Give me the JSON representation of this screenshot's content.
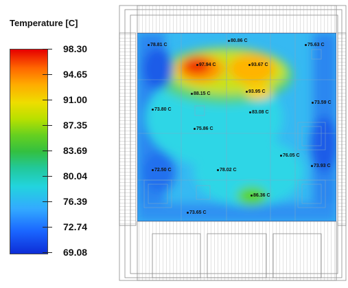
{
  "legend": {
    "title": "Temperature [C]",
    "values": [
      "98.30",
      "94.65",
      "91.00",
      "87.35",
      "83.69",
      "80.04",
      "76.39",
      "72.74",
      "69.08"
    ]
  },
  "color_scale": {
    "min": 69.08,
    "max": 98.3,
    "low_color": "#0d2dd6",
    "high_color": "#e60000"
  },
  "readings": [
    {
      "label": "78.81 C",
      "value": 78.81
    },
    {
      "label": "80.86 C",
      "value": 80.86
    },
    {
      "label": "75.63 C",
      "value": 75.63
    },
    {
      "label": "97.94 C",
      "value": 97.94
    },
    {
      "label": "93.67 C",
      "value": 93.67
    },
    {
      "label": "88.15 C",
      "value": 88.15
    },
    {
      "label": "93.95 C",
      "value": 93.95
    },
    {
      "label": "73.59 C",
      "value": 73.59
    },
    {
      "label": "73.80 C",
      "value": 73.8
    },
    {
      "label": "83.08 C",
      "value": 83.08
    },
    {
      "label": "75.86 C",
      "value": 75.86
    },
    {
      "label": "76.05 C",
      "value": 76.05
    },
    {
      "label": "72.50 C",
      "value": 72.5
    },
    {
      "label": "78.02 C",
      "value": 78.02
    },
    {
      "label": "73.93 C",
      "value": 73.93
    },
    {
      "label": "86.36 C",
      "value": 86.36
    },
    {
      "label": "73.65 C",
      "value": 73.65
    }
  ]
}
